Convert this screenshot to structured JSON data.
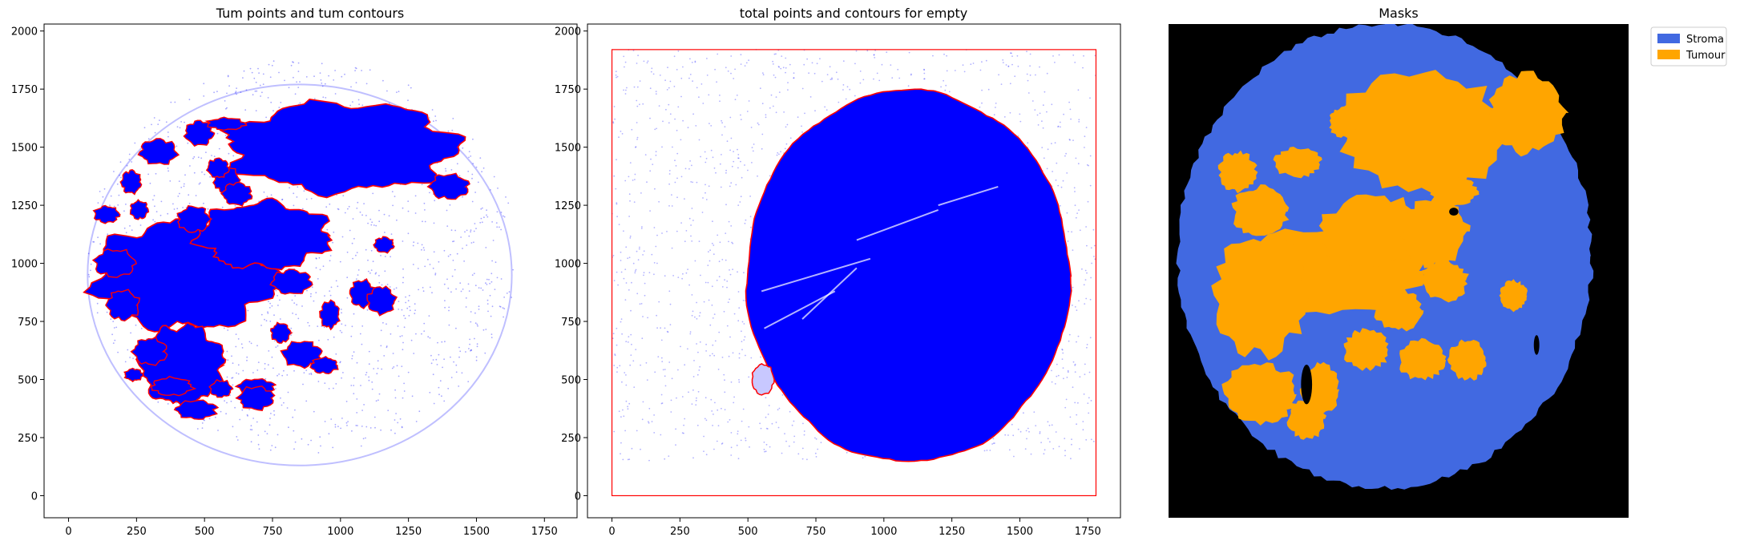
{
  "colors": {
    "points": "#0000ff",
    "contour": "#ff0000",
    "stroma": "#4169e1",
    "tumour": "#ffa500",
    "background": "#000000"
  },
  "chart_data": [
    {
      "type": "scatter",
      "title": "Tum points and tum contours",
      "xlim": [
        -90,
        1870
      ],
      "ylim": [
        -95,
        2030
      ],
      "xticks": [
        0,
        250,
        500,
        750,
        1000,
        1250,
        1500,
        1750
      ],
      "yticks": [
        0,
        250,
        500,
        750,
        1000,
        1250,
        1500,
        1750,
        2000
      ],
      "grid": false,
      "regions": [
        {
          "name": "sparse points",
          "cx": 860,
          "cy": 1030,
          "rx": 790,
          "ry": 850
        },
        {
          "name": "tumour band",
          "cx": 1000,
          "cy": 1500,
          "rx": 420,
          "ry": 190
        },
        {
          "name": "tumour left",
          "cx": 430,
          "cy": 950,
          "rx": 330,
          "ry": 230
        },
        {
          "name": "tumour mid",
          "cx": 720,
          "cy": 1120,
          "rx": 240,
          "ry": 140
        },
        {
          "name": "tumour blobs",
          "cx": 420,
          "cy": 560,
          "rx": 150,
          "ry": 170
        }
      ]
    },
    {
      "type": "scatter",
      "title": "total points and contours for empty",
      "xlim": [
        -90,
        1870
      ],
      "ylim": [
        -95,
        2030
      ],
      "xticks": [
        0,
        250,
        500,
        750,
        1000,
        1250,
        1500,
        1750
      ],
      "yticks": [
        0,
        250,
        500,
        750,
        1000,
        1250,
        1500,
        1750,
        2000
      ],
      "grid": false,
      "bounding_box": {
        "x0": 0,
        "x1": 1780,
        "y0": 0,
        "y1": 1920
      },
      "tissue": {
        "cx": 1090,
        "cy": 945,
        "rx": 595,
        "ry": 800
      }
    },
    {
      "type": "heatmap",
      "title": "Masks",
      "legend_position": "upper-right-outside",
      "legend": [
        {
          "label": "Stroma",
          "color": "#4169e1"
        },
        {
          "label": "Tumour",
          "color": "#ffa500"
        }
      ],
      "tissue": {
        "cx": 0.47,
        "cy": 0.47,
        "rx": 0.45,
        "ry": 0.47
      }
    }
  ]
}
